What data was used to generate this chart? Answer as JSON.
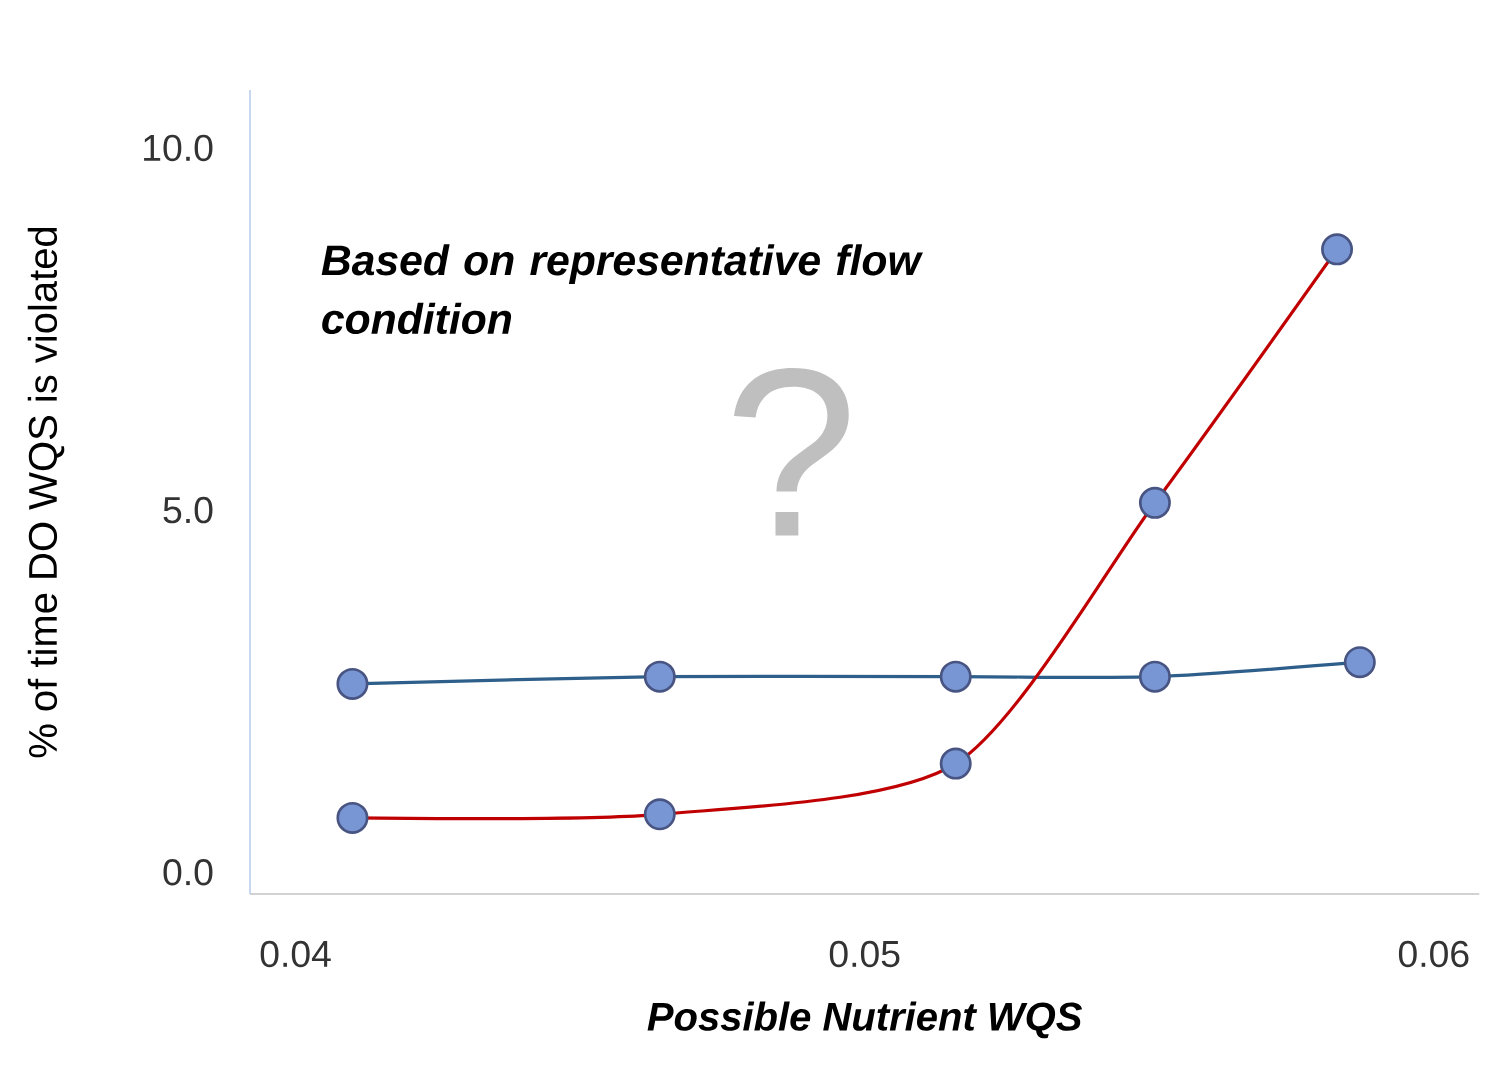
{
  "chart_data": {
    "type": "line",
    "xlabel": "Possible Nutrient WQS",
    "ylabel": "% of time DO WQS is violated",
    "annotations": [
      "Based on representative flow condition",
      "?"
    ],
    "series": [
      {
        "color": "#2e5f8a",
        "x": [
          0.041,
          0.0464,
          0.0516,
          0.0551,
          0.0587
        ],
        "values": [
          2.6,
          2.7,
          2.7,
          2.7,
          2.9
        ]
      },
      {
        "color": "#c00000",
        "x": [
          0.041,
          0.0464,
          0.0516,
          0.0551,
          0.0583
        ],
        "values": [
          0.75,
          0.8,
          1.5,
          5.1,
          8.6
        ]
      }
    ],
    "xlim": [
      0.0392,
      0.0608
    ],
    "ylim": [
      -0.3,
      10.8
    ],
    "xticks": [
      0.04,
      0.05,
      0.06
    ],
    "yticks": [
      {
        "value": 0,
        "label": "0.0"
      },
      {
        "value": 5,
        "label": "5.0"
      },
      {
        "value": 10,
        "label": "10.0"
      }
    ],
    "grid": false,
    "marker": "circle",
    "line_style": "solid"
  }
}
